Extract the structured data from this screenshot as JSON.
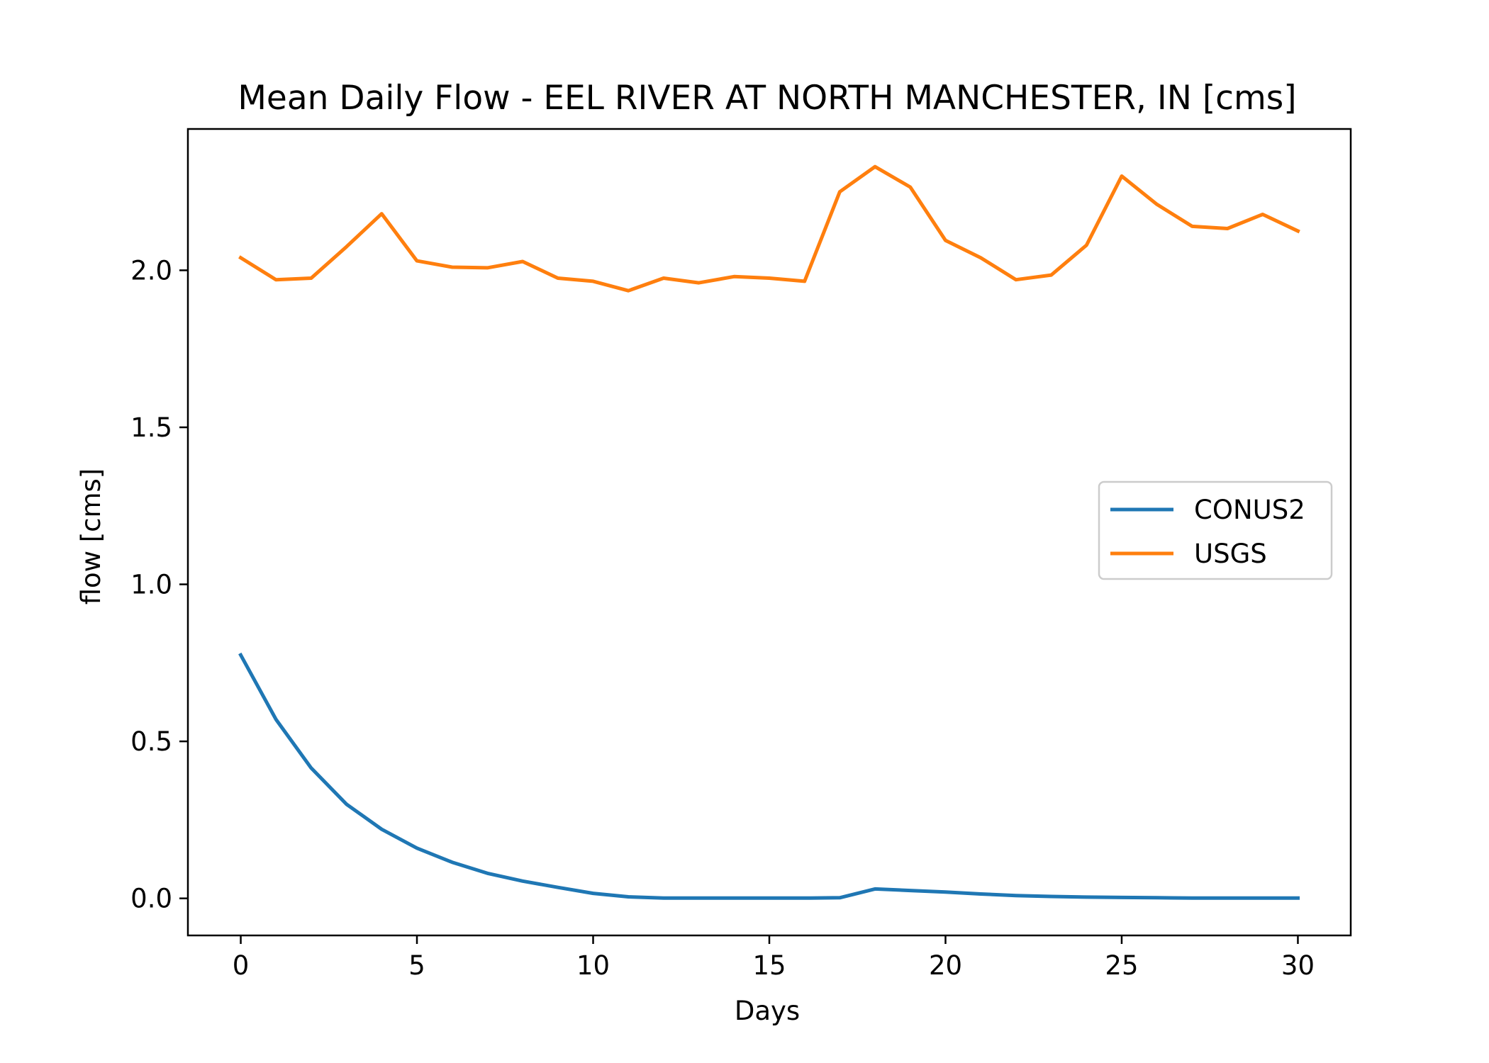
{
  "chart_data": {
    "type": "line",
    "title": "Mean Daily Flow - EEL RIVER AT NORTH MANCHESTER, IN [cms]",
    "xlabel": "Days",
    "ylabel": "flow [cms]",
    "xlim": [
      -1.5,
      31.5
    ],
    "ylim": [
      -0.118,
      2.45
    ],
    "xticks": [
      0,
      5,
      10,
      15,
      20,
      25,
      30
    ],
    "xtick_labels": [
      "0",
      "5",
      "10",
      "15",
      "20",
      "25",
      "30"
    ],
    "yticks": [
      0.0,
      0.5,
      1.0,
      1.5,
      2.0
    ],
    "ytick_labels": [
      "0.0",
      "0.5",
      "1.0",
      "1.5",
      "2.0"
    ],
    "grid": false,
    "legend_position": "center-right",
    "x": [
      0,
      1,
      2,
      3,
      4,
      5,
      6,
      7,
      8,
      9,
      10,
      11,
      12,
      13,
      14,
      15,
      16,
      17,
      18,
      19,
      20,
      21,
      22,
      23,
      24,
      25,
      26,
      27,
      28,
      29,
      30
    ],
    "series": [
      {
        "name": "CONUS2",
        "color": "#1f77b4",
        "values": [
          0.775,
          0.57,
          0.415,
          0.3,
          0.22,
          0.16,
          0.115,
          0.08,
          0.055,
          0.035,
          0.016,
          0.005,
          0.001,
          0.001,
          0.001,
          0.001,
          0.001,
          0.002,
          0.03,
          0.025,
          0.02,
          0.014,
          0.009,
          0.006,
          0.004,
          0.003,
          0.002,
          0.001,
          0.001,
          0.001,
          0.001
        ]
      },
      {
        "name": "USGS",
        "color": "#ff7f0e",
        "values": [
          2.04,
          1.97,
          1.975,
          2.075,
          2.18,
          2.03,
          2.01,
          2.008,
          2.028,
          1.975,
          1.965,
          1.935,
          1.975,
          1.96,
          1.98,
          1.975,
          1.965,
          2.25,
          2.33,
          2.265,
          2.095,
          2.04,
          1.97,
          1.985,
          2.08,
          2.3,
          2.21,
          2.14,
          2.133,
          2.178,
          2.125
        ]
      }
    ]
  }
}
